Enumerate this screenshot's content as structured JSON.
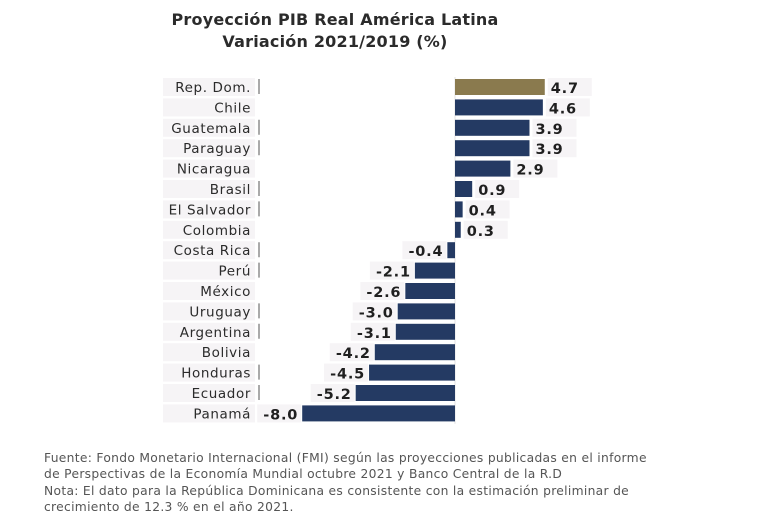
{
  "chart_data": {
    "type": "bar",
    "orientation": "horizontal",
    "title": "Proyección PIB Real América Latina",
    "subtitle": "Variación 2021/2019 (%)",
    "xlabel": "",
    "ylabel": "",
    "xlim": [
      -8.0,
      4.7
    ],
    "grid": false,
    "legend": "none",
    "categories": [
      "Rep. Dom.",
      "Chile",
      "Guatemala",
      "Paraguay",
      "Nicaragua",
      "Brasil",
      "El Salvador",
      "Colombia",
      "Costa Rica",
      "Perú",
      "México",
      "Uruguay",
      "Argentina",
      "Bolivia",
      "Honduras",
      "Ecuador",
      "Panamá"
    ],
    "values": [
      4.7,
      4.6,
      3.9,
      3.9,
      2.9,
      0.9,
      0.4,
      0.3,
      -0.4,
      -2.1,
      -2.6,
      -3.0,
      -3.1,
      -4.2,
      -4.5,
      -5.2,
      -8.0
    ],
    "data_labels": [
      "4.7",
      "4.6",
      "3.9",
      "3.9",
      "2.9",
      "0.9",
      "0.4",
      "0.3",
      "-0.4",
      "-2.1",
      "-2.6",
      "-3.0",
      "-3.1",
      "-4.2",
      "-4.5",
      "-5.2",
      "-8.0"
    ],
    "colors": {
      "highlight": "#8a7a4e",
      "default": "#243a63"
    },
    "highlight_category": "Rep. Dom."
  },
  "footnote": {
    "lines": [
      "Fuente: Fondo Monetario Internacional (FMI) según las proyecciones publicadas en el informe",
      "de Perspectivas de la Economía Mundial octubre 2021 y Banco Central de la R.D",
      "Nota: El dato para la República Dominicana es consistente con la estimación preliminar de",
      "crecimiento de 12.3 % en el año 2021."
    ]
  }
}
